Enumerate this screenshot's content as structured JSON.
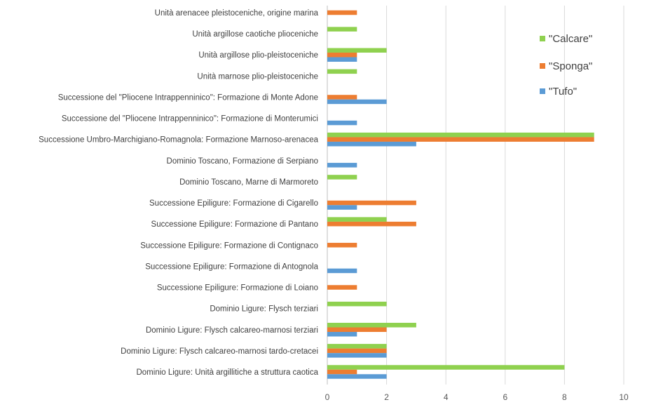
{
  "chart_data": {
    "type": "bar",
    "orientation": "horizontal",
    "categories": [
      "Unità arenacee pleistoceniche, origine marina",
      "Unità argillose caotiche plioceniche",
      "Unità argillose plio-pleistoceniche",
      "Unità marnose plio-pleistoceniche",
      "Successione del \"Pliocene Intrappenninico\": Formazione di Monte Adone",
      "Successione del \"Pliocene Intrappenninico\": Formazione di Monterumici",
      "Successione Umbro-Marchigiano-Romagnola: Formazione Marnoso-arenacea",
      "Dominio Toscano, Formazione di Serpiano",
      "Dominio Toscano, Marne di Marmoreto",
      "Successione Epiligure: Formazione di Cigarello",
      "Successione Epiligure: Formazione di Pantano",
      "Successione Epiligure: Formazione di Contignaco",
      "Successione Epiligure: Formazione di Antognola",
      "Successione Epiligure: Formazione di Loiano",
      "Dominio Ligure: Flysch terziari",
      "Dominio Ligure: Flysch calcareo-marnosi terziari",
      "Dominio Ligure: Flysch calcareo-marnosi tardo-cretacei",
      "Dominio Ligure: Unità argillitiche a struttura caotica"
    ],
    "series": [
      {
        "name": "\"Calcare\"",
        "color": "#8fd14f",
        "values": [
          0,
          1,
          2,
          1,
          0,
          0,
          9,
          0,
          1,
          0,
          2,
          0,
          0,
          0,
          2,
          3,
          2,
          8
        ]
      },
      {
        "name": "\"Sponga\"",
        "color": "#ed7d31",
        "values": [
          1,
          0,
          1,
          0,
          1,
          0,
          9,
          0,
          0,
          3,
          3,
          1,
          0,
          1,
          0,
          2,
          2,
          1
        ]
      },
      {
        "name": "\"Tufo\"",
        "color": "#5b9bd5",
        "values": [
          0,
          0,
          1,
          0,
          2,
          1,
          3,
          1,
          0,
          1,
          0,
          0,
          1,
          0,
          0,
          1,
          2,
          2
        ]
      }
    ],
    "xlim": [
      0,
      10
    ],
    "xticks": [
      "0",
      "2",
      "4",
      "6",
      "8",
      "10"
    ],
    "grid": true,
    "legend_position": "top-right",
    "title": "",
    "xlabel": "",
    "ylabel": ""
  }
}
